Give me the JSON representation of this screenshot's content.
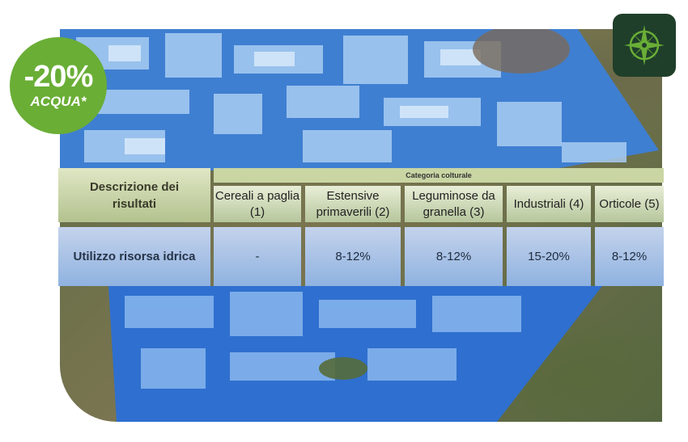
{
  "badge": {
    "value": "-20%",
    "label": "ACQUA*"
  },
  "icons": {
    "badge_icon": "compass-icon",
    "colors": {
      "badge": "#6aae36",
      "compass_bg": "#1f3f2a",
      "compass_fg": "#6aae36"
    }
  },
  "table": {
    "header_left": "Descrizione dei risultati",
    "category_header": "Categoria colturale",
    "columns": [
      "Cereali a paglia (1)",
      "Estensive primaverili (2)",
      "Leguminose da granella (3)",
      "Industriali (4)",
      "Orticole (5)"
    ],
    "row": {
      "label": "Utilizzo risorsa idrica",
      "values": [
        "-",
        "8-12%",
        "8-12%",
        "15-20%",
        "8-12%"
      ]
    }
  }
}
